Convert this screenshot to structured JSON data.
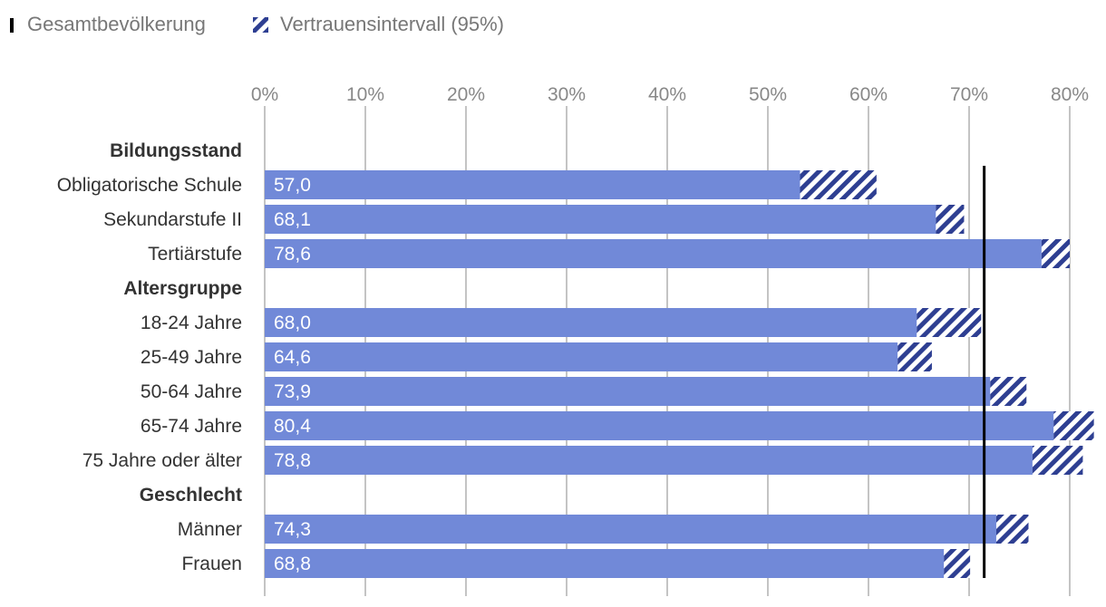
{
  "chart_data": {
    "type": "bar",
    "orientation": "horizontal",
    "legend": {
      "total_label": "Gesamtbevölkerung",
      "ci_label": "Vertrauensintervall (95%)",
      "placement": "top-left"
    },
    "xlim": [
      0,
      80
    ],
    "xticks": [
      {
        "value": 0,
        "label": "0%"
      },
      {
        "value": 10,
        "label": "10%"
      },
      {
        "value": 20,
        "label": "20%"
      },
      {
        "value": 30,
        "label": "30%"
      },
      {
        "value": 40,
        "label": "40%"
      },
      {
        "value": 50,
        "label": "50%"
      },
      {
        "value": 60,
        "label": "60%"
      },
      {
        "value": 70,
        "label": "70%"
      },
      {
        "value": 80,
        "label": "80%"
      }
    ],
    "grid": true,
    "total_population_value": 71.5,
    "rows": [
      {
        "kind": "group",
        "label": "Bildungsstand"
      },
      {
        "kind": "bar",
        "label": "Obligatorische Schule",
        "value": 57.0,
        "value_label": "57,0",
        "ci": [
          53.2,
          60.8
        ]
      },
      {
        "kind": "bar",
        "label": "Sekundarstufe II",
        "value": 68.1,
        "value_label": "68,1",
        "ci": [
          66.7,
          69.5
        ]
      },
      {
        "kind": "bar",
        "label": "Tertiärstufe",
        "value": 78.6,
        "value_label": "78,6",
        "ci": [
          77.2,
          80.0
        ]
      },
      {
        "kind": "group",
        "label": "Altersgruppe"
      },
      {
        "kind": "bar",
        "label": "18-24 Jahre",
        "value": 68.0,
        "value_label": "68,0",
        "ci": [
          64.8,
          71.2
        ]
      },
      {
        "kind": "bar",
        "label": "25-49 Jahre",
        "value": 64.6,
        "value_label": "64,6",
        "ci": [
          62.9,
          66.3
        ]
      },
      {
        "kind": "bar",
        "label": "50-64 Jahre",
        "value": 73.9,
        "value_label": "73,9",
        "ci": [
          72.1,
          75.7
        ]
      },
      {
        "kind": "bar",
        "label": "65-74 Jahre",
        "value": 80.4,
        "value_label": "80,4",
        "ci": [
          78.4,
          82.4
        ]
      },
      {
        "kind": "bar",
        "label": "75 Jahre oder älter",
        "value": 78.8,
        "value_label": "78,8",
        "ci": [
          76.3,
          81.3
        ]
      },
      {
        "kind": "group",
        "label": "Geschlecht"
      },
      {
        "kind": "bar",
        "label": "Männer",
        "value": 74.3,
        "value_label": "74,3",
        "ci": [
          72.7,
          75.9
        ]
      },
      {
        "kind": "bar",
        "label": "Frauen",
        "value": 68.8,
        "value_label": "68,8",
        "ci": [
          67.5,
          70.1
        ]
      }
    ],
    "colors": {
      "bar": "#7189d8",
      "ci": "#2e3f92",
      "grid": "#b0b0b0",
      "total_line": "#000000"
    }
  }
}
